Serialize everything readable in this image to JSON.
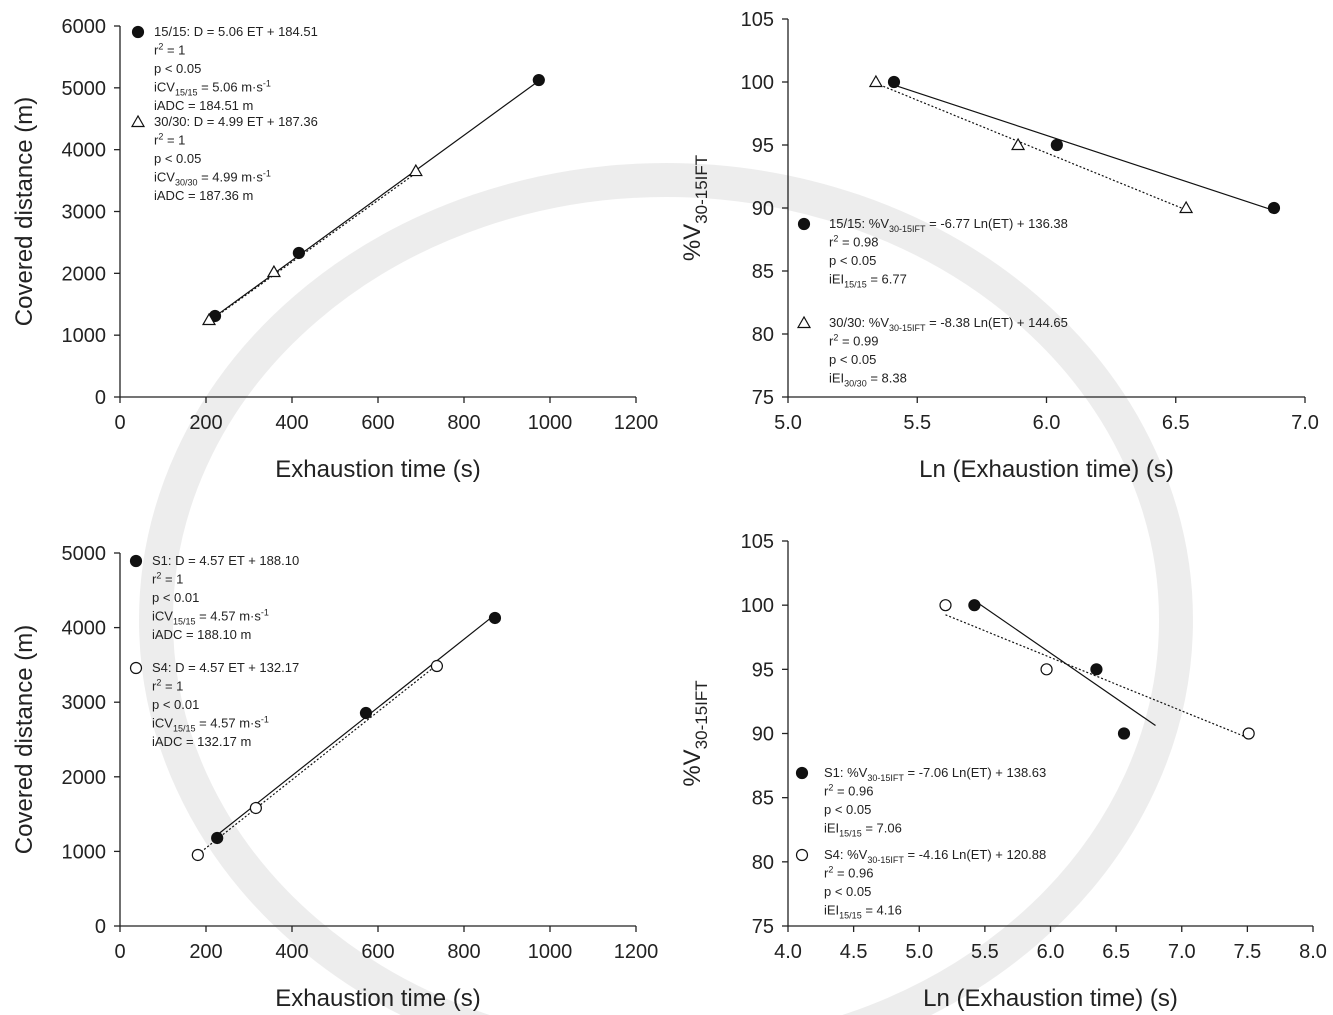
{
  "chart_data": [
    {
      "type": "scatter",
      "xlabel": "Exhaustion time (s)",
      "ylabel": [
        "Covered distance (m)"
      ],
      "xlim": [
        0,
        1200
      ],
      "ylim": [
        0,
        6000
      ],
      "xticks": [
        0,
        200,
        400,
        600,
        800,
        1000,
        1200
      ],
      "yticks": [
        0,
        1000,
        2000,
        3000,
        4000,
        5000,
        6000
      ],
      "series": [
        {
          "marker": "circle",
          "filled": true,
          "color": "#111111",
          "line_style": "solid",
          "x": [
            221,
            416,
            974
          ],
          "values": [
            1310,
            2329,
            5126
          ],
          "trend": {
            "x": [
              221,
              974
            ],
            "y": [
              1303,
              5113
            ]
          },
          "legend": [
            [
              "15/15: D = 5.06 ET + 184.51"
            ],
            [
              "r",
              {
                "sup": "2"
              },
              " = 1"
            ],
            [
              "p < 0.05"
            ],
            [
              "iCV",
              {
                "sub": "15/15"
              },
              " = 5.06 m·s",
              {
                "sup": "-1"
              }
            ],
            [
              "iADC = 184.51 m"
            ]
          ]
        },
        {
          "marker": "triangle",
          "filled": false,
          "color": "#111111",
          "line_style": "dotted",
          "x": [
            207,
            358,
            688
          ],
          "values": [
            1245,
            2021,
            3654
          ],
          "trend": {
            "x": [
              207,
              688
            ],
            "y": [
              1220,
              3620
            ]
          },
          "legend": [
            [
              "30/30: D = 4.99 ET + 187.36"
            ],
            [
              "r",
              {
                "sup": "2"
              },
              " = 1"
            ],
            [
              "p < 0.05"
            ],
            [
              "iCV",
              {
                "sub": "30/30"
              },
              " = 4.99 m·s",
              {
                "sup": "-1"
              }
            ],
            [
              "iADC = 187.36 m"
            ]
          ]
        }
      ]
    },
    {
      "type": "scatter",
      "xlabel": "Ln (Exhaustion time) (s)",
      "ylabel": [
        "%V",
        {
          "sub": "30-15IFT"
        }
      ],
      "xlim": [
        5,
        7
      ],
      "ylim": [
        75,
        105
      ],
      "xticks": [
        {
          "value": 5,
          "label": "5.0"
        },
        5.5,
        {
          "value": 6,
          "label": "6.0"
        },
        6.5,
        {
          "value": 7,
          "label": "7.0"
        }
      ],
      "yticks": [
        75,
        80,
        85,
        90,
        95,
        100,
        105
      ],
      "series": [
        {
          "marker": "circle",
          "filled": true,
          "color": "#111111",
          "line_style": "solid",
          "x": [
            5.41,
            6.04,
            6.88
          ],
          "values": [
            100,
            95,
            90
          ],
          "trend": {
            "x": [
              5.41,
              6.88
            ],
            "y": [
              99.76,
              89.8
            ]
          },
          "legend": [
            [
              "15/15: %V",
              {
                "sub": "30-15IFT"
              },
              " = -6.77 Ln(ET) + 136.38"
            ],
            [
              "r",
              {
                "sup": "2"
              },
              " = 0.98"
            ],
            [
              "p < 0.05"
            ],
            [
              "iEI",
              {
                "sub": "15/15"
              },
              " = 6.77"
            ]
          ]
        },
        {
          "marker": "triangle",
          "filled": false,
          "color": "#111111",
          "line_style": "dotted",
          "x": [
            5.34,
            5.89,
            6.54
          ],
          "values": [
            100,
            95,
            90
          ],
          "trend": {
            "x": [
              5.34,
              6.54
            ],
            "y": [
              99.9,
              89.85
            ]
          },
          "legend": [
            [
              "30/30: %V",
              {
                "sub": "30-15IFT"
              },
              " = -8.38 Ln(ET) + 144.65"
            ],
            [
              "r",
              {
                "sup": "2"
              },
              " = 0.99"
            ],
            [
              "p < 0.05"
            ],
            [
              "iEI",
              {
                "sub": "30/30"
              },
              " = 8.38"
            ]
          ]
        }
      ]
    },
    {
      "type": "scatter",
      "xlabel": "Exhaustion time (s)",
      "ylabel": [
        "Covered distance (m)"
      ],
      "xlim": [
        0,
        1200
      ],
      "ylim": [
        0,
        5000
      ],
      "xticks": [
        0,
        200,
        400,
        600,
        800,
        1000,
        1200
      ],
      "yticks": [
        0,
        1000,
        2000,
        3000,
        4000,
        5000
      ],
      "series": [
        {
          "marker": "circle",
          "filled": true,
          "color": "#111111",
          "line_style": "solid",
          "x": [
            226,
            572,
            872
          ],
          "values": [
            1180,
            2855,
            4129
          ],
          "trend": {
            "x": [
              213,
              872
            ],
            "y": [
              1161,
              4173
            ]
          },
          "legend": [
            [
              "S1: D = 4.57 ET + 188.10"
            ],
            [
              "r",
              {
                "sup": "2"
              },
              " = 1"
            ],
            [
              "p < 0.01"
            ],
            [
              "iCV",
              {
                "sub": "15/15"
              },
              " = 4.57 m·s",
              {
                "sup": "-1"
              }
            ],
            [
              "iADC = 188.10 m"
            ]
          ]
        },
        {
          "marker": "circle",
          "filled": false,
          "color": "#111111",
          "line_style": "dotted",
          "x": [
            181,
            316,
            737
          ],
          "values": [
            952,
            1582,
            3485
          ],
          "trend": {
            "x": [
              181,
              737
            ],
            "y": [
              959,
              3500
            ]
          },
          "legend": [
            [
              "S4: D = 4.57 ET + 132.17"
            ],
            [
              "r",
              {
                "sup": "2"
              },
              " = 1"
            ],
            [
              "p < 0.01"
            ],
            [
              "iCV",
              {
                "sub": "15/15"
              },
              " = 4.57 m·s",
              {
                "sup": "-1"
              }
            ],
            [
              "iADC = 132.17 m"
            ]
          ]
        }
      ]
    },
    {
      "type": "scatter",
      "xlabel": "Ln (Exhaustion time) (s)",
      "ylabel": [
        "%V",
        {
          "sub": "30-15IFT"
        }
      ],
      "xlim": [
        4,
        8
      ],
      "ylim": [
        75,
        105
      ],
      "xticks": [
        {
          "value": 4,
          "label": "4.0"
        },
        4.5,
        {
          "value": 5,
          "label": "5.0"
        },
        5.5,
        {
          "value": 6,
          "label": "6.0"
        },
        6.5,
        {
          "value": 7,
          "label": "7.0"
        },
        7.5,
        {
          "value": 8,
          "label": "8.0"
        }
      ],
      "yticks": [
        75,
        80,
        85,
        90,
        95,
        100,
        105
      ],
      "series": [
        {
          "marker": "circle",
          "filled": true,
          "color": "#111111",
          "line_style": "solid",
          "x": [
            5.42,
            6.35,
            6.56
          ],
          "values": [
            100,
            95,
            90
          ],
          "trend": {
            "x": [
              5.45,
              6.8
            ],
            "y": [
              100.15,
              90.62
            ]
          },
          "legend": [
            [
              "S1: %V",
              {
                "sub": "30-15IFT"
              },
              " = -7.06 Ln(ET) + 138.63"
            ],
            [
              "r",
              {
                "sup": "2"
              },
              " = 0.96"
            ],
            [
              "p < 0.05"
            ],
            [
              "iEI",
              {
                "sub": "15/15"
              },
              " = 7.06"
            ]
          ]
        },
        {
          "marker": "circle",
          "filled": false,
          "color": "#111111",
          "line_style": "dotted",
          "x": [
            5.2,
            5.97,
            7.51
          ],
          "values": [
            100,
            95,
            90
          ],
          "trend": {
            "x": [
              5.2,
              7.5
            ],
            "y": [
              99.25,
              89.68
            ]
          },
          "legend": [
            [
              "S4: %V",
              {
                "sub": "30-15IFT"
              },
              " = -4.16 Ln(ET) + 120.88"
            ],
            [
              "r",
              {
                "sup": "2"
              },
              " = 0.96"
            ],
            [
              "p < 0.05"
            ],
            [
              "iEI",
              {
                "sub": "15/15"
              },
              " = 4.16"
            ]
          ]
        }
      ]
    }
  ]
}
